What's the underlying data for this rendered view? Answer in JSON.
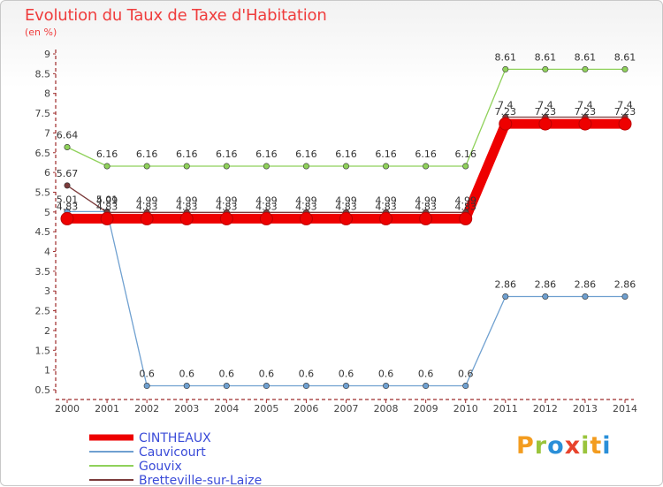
{
  "header": {
    "title": "Evolution du Taux de Taxe d'Habitation",
    "unit": "(en %)"
  },
  "logo": {
    "text": "Proxiti",
    "colors": [
      "#f39c1f",
      "#9ac43c",
      "#2a8fd8",
      "#e8432c",
      "#9ac43c",
      "#f39c1f",
      "#2a8fd8"
    ]
  },
  "chart_data": {
    "type": "line",
    "title": "Evolution du Taux de Taxe d'Habitation",
    "ylabel": "(en %)",
    "xlabel": "",
    "x": [
      "2000",
      "2001",
      "2002",
      "2003",
      "2004",
      "2005",
      "2006",
      "2007",
      "2008",
      "2009",
      "2010",
      "2011",
      "2012",
      "2013",
      "2014"
    ],
    "ylim": [
      0.5,
      9
    ],
    "yticks": [
      0.5,
      1,
      1.5,
      2,
      2.5,
      3,
      3.5,
      4,
      4.5,
      5,
      5.5,
      6,
      6.5,
      7,
      7.5,
      8,
      8.5,
      9
    ],
    "grid": false,
    "legend_position": "bottom-left",
    "series": [
      {
        "name": "CINTHEAUX",
        "color": "#ee0000",
        "emphasis": true,
        "values": [
          4.83,
          4.83,
          4.83,
          4.83,
          4.83,
          4.83,
          4.83,
          4.83,
          4.83,
          4.83,
          4.83,
          7.23,
          7.23,
          7.23,
          7.23
        ],
        "labels": [
          "4.83",
          "4.83",
          "4.83",
          "4.83",
          "4.83",
          "4.83",
          "4.83",
          "4.83",
          "4.83",
          "4.83",
          "4.83",
          "7.23",
          "7.23",
          "7.23",
          "7.23"
        ]
      },
      {
        "name": "Cauvicourt",
        "color": "#6fa0d0",
        "values": [
          5.01,
          5.01,
          0.6,
          0.6,
          0.6,
          0.6,
          0.6,
          0.6,
          0.6,
          0.6,
          0.6,
          2.86,
          2.86,
          2.86,
          2.86
        ],
        "labels": [
          "5.01",
          "5.01",
          "0.6",
          "0.6",
          "0.6",
          "0.6",
          "0.6",
          "0.6",
          "0.6",
          "0.6",
          "0.6",
          "2.86",
          "2.86",
          "2.86",
          "2.86"
        ]
      },
      {
        "name": "Gouvix",
        "color": "#8fd15a",
        "values": [
          6.64,
          6.16,
          6.16,
          6.16,
          6.16,
          6.16,
          6.16,
          6.16,
          6.16,
          6.16,
          6.16,
          8.61,
          8.61,
          8.61,
          8.61
        ],
        "labels": [
          "6.64",
          "6.16",
          "6.16",
          "6.16",
          "6.16",
          "6.16",
          "6.16",
          "6.16",
          "6.16",
          "6.16",
          "6.16",
          "8.61",
          "8.61",
          "8.61",
          "8.61"
        ]
      },
      {
        "name": "Bretteville-sur-Laize",
        "color": "#7b3b3b",
        "values": [
          5.67,
          4.99,
          4.99,
          4.99,
          4.99,
          4.99,
          4.99,
          4.99,
          4.99,
          4.99,
          4.99,
          7.4,
          7.4,
          7.4,
          7.4
        ],
        "labels": [
          "5.67",
          "4.99",
          "4.99",
          "4.99",
          "4.99",
          "4.99",
          "4.99",
          "4.99",
          "4.99",
          "4.99",
          "4.99",
          "7.4",
          "7.4",
          "7.4",
          "7.4"
        ]
      }
    ]
  }
}
